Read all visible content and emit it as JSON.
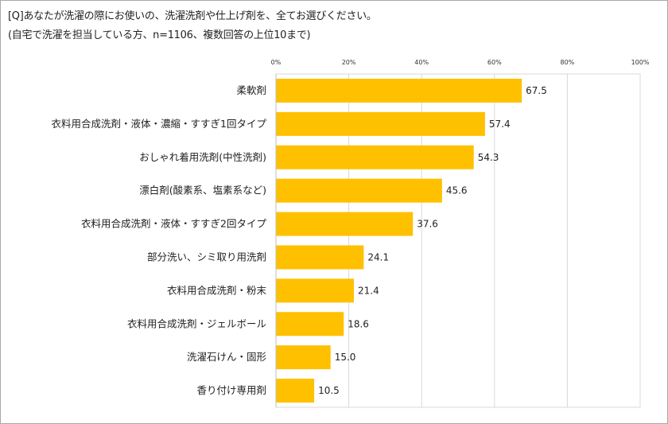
{
  "chart_data": {
    "type": "bar",
    "orientation": "horizontal",
    "title": "[Q]あなたが洗濯の際にお使いの、洗濯洗剤や仕上げ剤を、全てお選びください。",
    "subtitle": "(自宅で洗濯を担当している方、n=1106、複数回答の上位10まで)",
    "categories": [
      "柔軟剤",
      "衣料用合成洗剤・液体・濃縮・すすぎ1回タイプ",
      "おしゃれ着用洗剤(中性洗剤)",
      "漂白剤(酸素系、塩素系など)",
      "衣料用合成洗剤・液体・すすぎ2回タイプ",
      "部分洗い、シミ取り用洗剤",
      "衣料用合成洗剤・粉末",
      "衣料用合成洗剤・ジェルボール",
      "洗濯石けん・固形",
      "香り付け専用剤"
    ],
    "values": [
      67.5,
      57.4,
      54.3,
      45.6,
      37.6,
      24.1,
      21.4,
      18.6,
      15.0,
      10.5
    ],
    "value_labels": [
      "67.5",
      "57.4",
      "54.3",
      "45.6",
      "37.6",
      "24.1",
      "21.4",
      "18.6",
      "15.0",
      "10.5"
    ],
    "xlim": [
      0,
      100
    ],
    "xticks": [
      0,
      20,
      40,
      60,
      80,
      100
    ],
    "xtick_labels": [
      "0%",
      "20%",
      "40%",
      "60%",
      "80%",
      "100%"
    ],
    "axis_position": "top",
    "grid": true,
    "bar_color": "#FFC000",
    "grid_color": "#d9d9d9"
  }
}
